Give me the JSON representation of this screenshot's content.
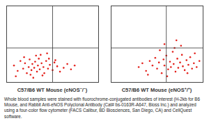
{
  "chart_data": [
    {
      "type": "scatter",
      "title": "C57/B6 WT Mouse (eNOS⁻/⁻)",
      "x": [
        8,
        12,
        15,
        18,
        20,
        22,
        24,
        25,
        27,
        28,
        30,
        31,
        33,
        34,
        35,
        36,
        38,
        40,
        41,
        43,
        45,
        47,
        50,
        52,
        55,
        58,
        62,
        66,
        70,
        74,
        10,
        19,
        26,
        32,
        39,
        46,
        53,
        29,
        37,
        44
      ],
      "values": [
        22,
        15,
        28,
        18,
        25,
        12,
        20,
        30,
        16,
        24,
        19,
        27,
        14,
        22,
        31,
        17,
        25,
        20,
        12,
        28,
        18,
        23,
        16,
        26,
        21,
        14,
        19,
        24,
        17,
        22,
        8,
        33,
        10,
        35,
        9,
        31,
        29,
        6,
        36,
        38
      ],
      "color": "#e3211c",
      "marker": "dot",
      "gates": {
        "x": 50,
        "y": 45
      },
      "xlim": [
        0,
        100
      ],
      "ylim": [
        0,
        100
      ],
      "tick_labels": false
    },
    {
      "type": "scatter",
      "title": "C57/B6 WT Mouse (eNOS⁺/⁺)",
      "x": [
        30,
        34,
        38,
        42,
        45,
        48,
        50,
        52,
        55,
        57,
        58,
        60,
        62,
        64,
        65,
        67,
        68,
        70,
        72,
        73,
        75,
        77,
        78,
        80,
        82,
        84,
        86,
        88,
        90,
        93,
        96,
        40,
        53,
        61,
        69,
        76,
        83,
        91,
        58,
        71
      ],
      "values": [
        20,
        25,
        15,
        28,
        22,
        32,
        18,
        26,
        12,
        30,
        22,
        35,
        17,
        27,
        20,
        40,
        24,
        14,
        31,
        19,
        26,
        36,
        21,
        16,
        29,
        23,
        33,
        18,
        25,
        20,
        28,
        10,
        42,
        8,
        45,
        48,
        12,
        38,
        50,
        55
      ],
      "color": "#e3211c",
      "marker": "dot",
      "gates": {
        "x": 60,
        "y": 45
      },
      "xlim": [
        0,
        100
      ],
      "ylim": [
        0,
        100
      ],
      "tick_labels": false
    }
  ],
  "caption": "Whole blood samples were stained with fluorochrome-conjugated antibodies of interest (H-2kb for B6 Mouse, and Rabbit Anti-eNOS Polyclonal Antibody (Cat# bs-0163R-A647, Bioss Inc.) and analyzed using a four-color flow cytometer (FACS Calibur, BD Biosciences, San Diego, CA) and CellQuest software."
}
